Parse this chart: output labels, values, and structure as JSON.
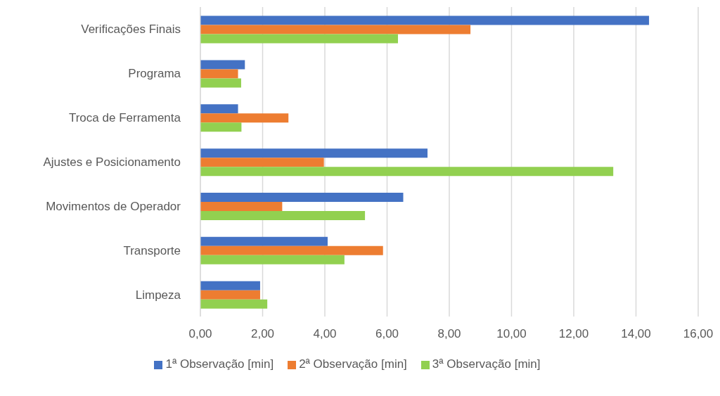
{
  "chart_data": {
    "type": "bar",
    "orientation": "horizontal",
    "categories": [
      "Verificações Finais",
      "Programa",
      "Troca de Ferramenta",
      "Ajustes e Posicionamento",
      "Movimentos de Operador",
      "Transporte",
      "Limpeza"
    ],
    "series": [
      {
        "name": "1ª Observação [min]",
        "color": "#4472c4",
        "values": [
          14.42,
          1.43,
          1.21,
          7.3,
          6.52,
          4.09,
          1.92
        ]
      },
      {
        "name": "2ª Observação [min]",
        "color": "#ed7d31",
        "values": [
          8.68,
          1.21,
          2.83,
          3.97,
          2.63,
          5.87,
          1.92
        ]
      },
      {
        "name": "3ª Observação [min]",
        "color": "#92d050",
        "values": [
          6.35,
          1.31,
          1.32,
          13.27,
          5.29,
          4.63,
          2.15
        ]
      }
    ],
    "xlim": [
      0,
      16
    ],
    "xticks": [
      {
        "value": 0,
        "label": "0,00"
      },
      {
        "value": 2,
        "label": "2,00"
      },
      {
        "value": 4,
        "label": "4,00"
      },
      {
        "value": 6,
        "label": "6,00"
      },
      {
        "value": 8,
        "label": "8,00"
      },
      {
        "value": 10,
        "label": "10,00"
      },
      {
        "value": 12,
        "label": "12,00"
      },
      {
        "value": 14,
        "label": "14,00"
      },
      {
        "value": 16,
        "label": "16,00"
      }
    ],
    "grid": "x",
    "legend": "bottom"
  }
}
